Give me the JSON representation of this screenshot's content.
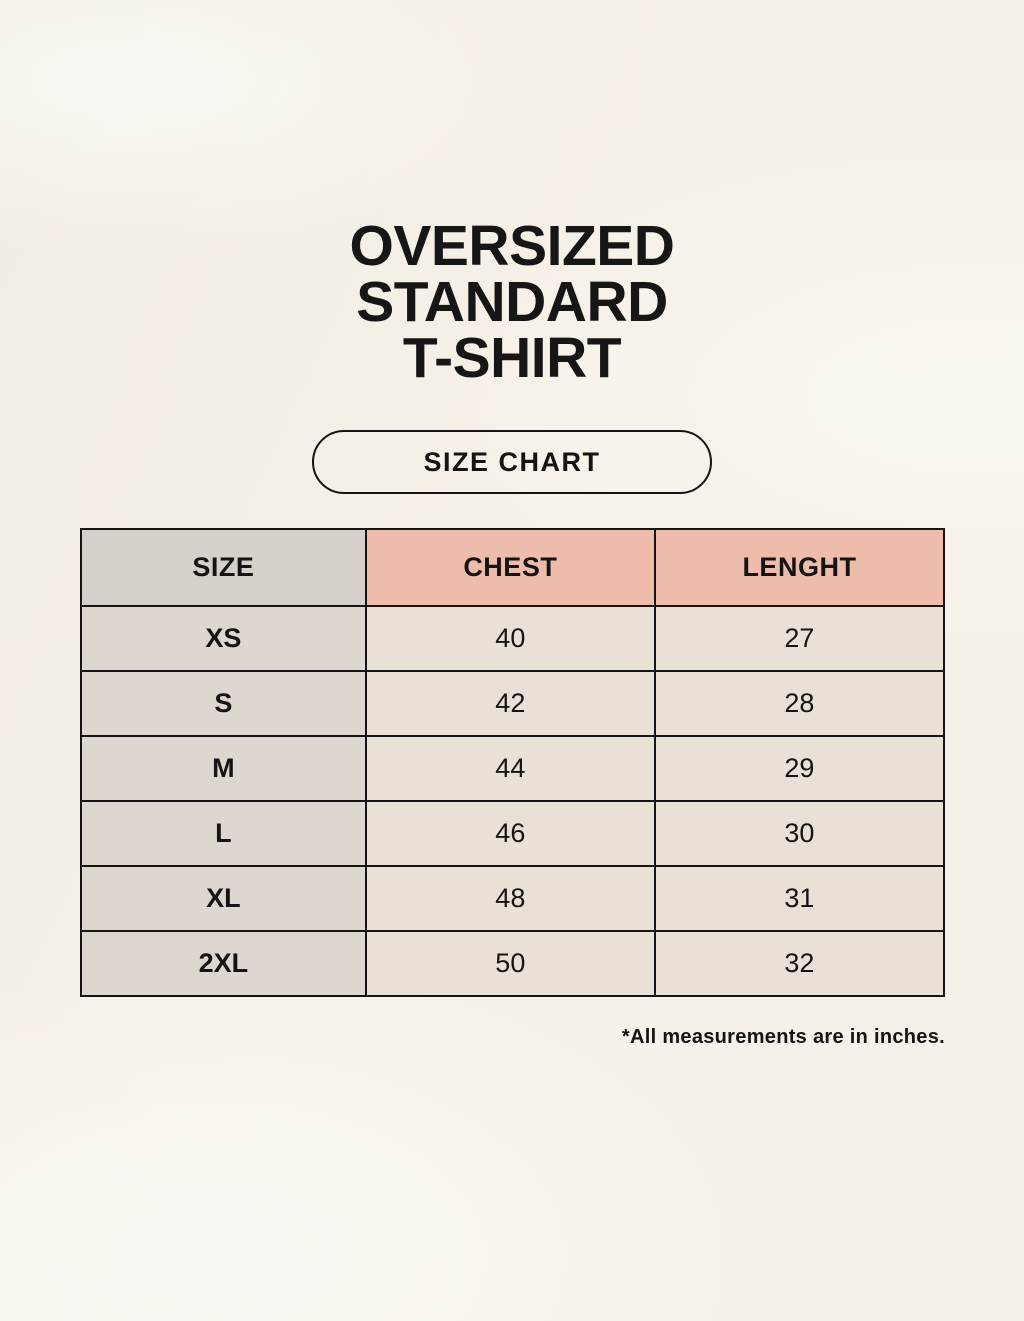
{
  "page": {
    "title_lines": [
      "OVERSIZED",
      "STANDARD",
      "T-SHIRT"
    ],
    "size_chart_button": "SIZE CHART",
    "footnote": "*All measurements are in inches."
  },
  "chart_data": {
    "type": "table",
    "title": "OVERSIZED STANDARD T-SHIRT",
    "columns": [
      "SIZE",
      "CHEST",
      "LENGHT"
    ],
    "rows": [
      {
        "size": "XS",
        "chest": "40",
        "lenght": "27"
      },
      {
        "size": "S",
        "chest": "42",
        "lenght": "28"
      },
      {
        "size": "M",
        "chest": "44",
        "lenght": "29"
      },
      {
        "size": "L",
        "chest": "46",
        "lenght": "30"
      },
      {
        "size": "XL",
        "chest": "48",
        "lenght": "31"
      },
      {
        "size": "2XL",
        "chest": "50",
        "lenght": "32"
      }
    ],
    "units_note": "*All measurements are in inches."
  },
  "colors": {
    "page_background": "#f6f1e8",
    "header_size_bg": "#d6d0ca",
    "header_measure_bg": "#eebcab",
    "size_column_bg": "#ded7d0",
    "data_cell_bg": "#e9e1d5",
    "border": "#141414",
    "text": "#141414"
  }
}
